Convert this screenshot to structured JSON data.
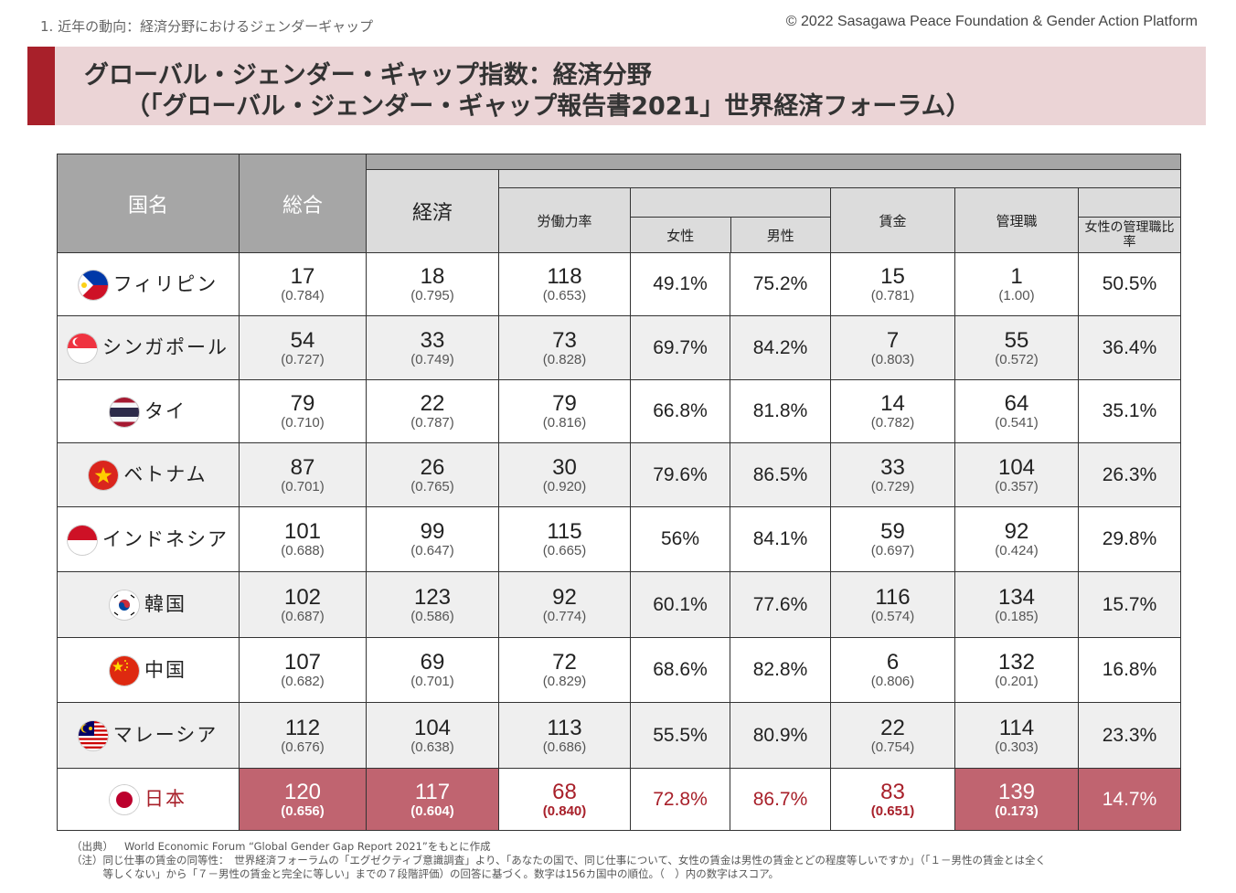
{
  "header": {
    "breadcrumb": "1. 近年の動向：経済分野におけるジェンダーギャップ",
    "copyright": "© 2022 Sasagawa Peace Foundation & Gender Action Platform",
    "title_line1": "グローバル・ジェンダー・ギャップ指数：経済分野",
    "title_line2": "（「グローバル・ジェンダー・ギャップ報告書2021」世界経済フォーラム）"
  },
  "table": {
    "headers": {
      "country": "国名",
      "overall": "総合",
      "economy": "経済",
      "labor": "労働力率",
      "female": "女性",
      "male": "男性",
      "wage": "賃金",
      "managers": "管理職",
      "female_mgr_ratio": "女性の管理職比率"
    },
    "rows": [
      {
        "country": "フィリピン",
        "flag": "philippines-flag-icon",
        "overall_rank": "17",
        "overall_score": "(0.784)",
        "econ_rank": "18",
        "econ_score": "(0.795)",
        "labor_rank": "118",
        "labor_score": "(0.653)",
        "female": "49.1%",
        "male": "75.2%",
        "wage_rank": "15",
        "wage_score": "(0.781)",
        "mgr_rank": "1",
        "mgr_score": "(1.00)",
        "female_mgr": "50.5%"
      },
      {
        "country": "シンガポール",
        "flag": "singapore-flag-icon",
        "overall_rank": "54",
        "overall_score": "(0.727)",
        "econ_rank": "33",
        "econ_score": "(0.749)",
        "labor_rank": "73",
        "labor_score": "(0.828)",
        "female": "69.7%",
        "male": "84.2%",
        "wage_rank": "7",
        "wage_score": "(0.803)",
        "mgr_rank": "55",
        "mgr_score": "(0.572)",
        "female_mgr": "36.4%"
      },
      {
        "country": "タイ",
        "flag": "thailand-flag-icon",
        "overall_rank": "79",
        "overall_score": "(0.710)",
        "econ_rank": "22",
        "econ_score": "(0.787)",
        "labor_rank": "79",
        "labor_score": "(0.816)",
        "female": "66.8%",
        "male": "81.8%",
        "wage_rank": "14",
        "wage_score": "(0.782)",
        "mgr_rank": "64",
        "mgr_score": "(0.541)",
        "female_mgr": "35.1%"
      },
      {
        "country": "ベトナム",
        "flag": "vietnam-flag-icon",
        "overall_rank": "87",
        "overall_score": "(0.701)",
        "econ_rank": "26",
        "econ_score": "(0.765)",
        "labor_rank": "30",
        "labor_score": "(0.920)",
        "female": "79.6%",
        "male": "86.5%",
        "wage_rank": "33",
        "wage_score": "(0.729)",
        "mgr_rank": "104",
        "mgr_score": "(0.357)",
        "female_mgr": "26.3%"
      },
      {
        "country": "インドネシア",
        "flag": "indonesia-flag-icon",
        "overall_rank": "101",
        "overall_score": "(0.688)",
        "econ_rank": "99",
        "econ_score": "(0.647)",
        "labor_rank": "115",
        "labor_score": "(0.665)",
        "female": "56%",
        "male": "84.1%",
        "wage_rank": "59",
        "wage_score": "(0.697)",
        "mgr_rank": "92",
        "mgr_score": "(0.424)",
        "female_mgr": "29.8%"
      },
      {
        "country": "韓国",
        "flag": "korea-flag-icon",
        "overall_rank": "102",
        "overall_score": "(0.687)",
        "econ_rank": "123",
        "econ_score": "(0.586)",
        "labor_rank": "92",
        "labor_score": "(0.774)",
        "female": "60.1%",
        "male": "77.6%",
        "wage_rank": "116",
        "wage_score": "(0.574)",
        "mgr_rank": "134",
        "mgr_score": "(0.185)",
        "female_mgr": "15.7%"
      },
      {
        "country": "中国",
        "flag": "china-flag-icon",
        "overall_rank": "107",
        "overall_score": "(0.682)",
        "econ_rank": "69",
        "econ_score": "(0.701)",
        "labor_rank": "72",
        "labor_score": "(0.829)",
        "female": "68.6%",
        "male": "82.8%",
        "wage_rank": "6",
        "wage_score": "(0.806)",
        "mgr_rank": "132",
        "mgr_score": "(0.201)",
        "female_mgr": "16.8%"
      },
      {
        "country": "マレーシア",
        "flag": "malaysia-flag-icon",
        "overall_rank": "112",
        "overall_score": "(0.676)",
        "econ_rank": "104",
        "econ_score": "(0.638)",
        "labor_rank": "113",
        "labor_score": "(0.686)",
        "female": "55.5%",
        "male": "80.9%",
        "wage_rank": "22",
        "wage_score": "(0.754)",
        "mgr_rank": "114",
        "mgr_score": "(0.303)",
        "female_mgr": "23.3%"
      },
      {
        "country": "日本",
        "flag": "japan-flag-icon",
        "overall_rank": "120",
        "overall_score": "(0.656)",
        "econ_rank": "117",
        "econ_score": "(0.604)",
        "labor_rank": "68",
        "labor_score": "(0.840)",
        "female": "72.8%",
        "male": "86.7%",
        "wage_rank": "83",
        "wage_score": "(0.651)",
        "mgr_rank": "139",
        "mgr_score": "(0.173)",
        "female_mgr": "14.7%"
      }
    ]
  },
  "notes": {
    "source_label": "（出典）",
    "source_text": "World Economic Forum “Global Gender Gap Report 2021”をもとに作成",
    "note_line1": "（注）同じ仕事の賃金の同等性：　世界経済フォーラムの「エグゼクティブ意識調査」より、「あなたの国で、同じ仕事について、女性の賃金は男性の賃金とどの程度等しいですか」（「１－男性の賃金とは全く",
    "note_line2": "　　　等しくない」から「７－男性の賃金と完全に等しい」までの７段階評価）の回答に基づく。数字は156カ国中の順位。（　）内の数字はスコア。"
  },
  "colors": {
    "accent": "#a8202a",
    "banner": "#ebd4d6",
    "header_gray": "#a6a6a6",
    "japan_highlight": "#c06470"
  }
}
